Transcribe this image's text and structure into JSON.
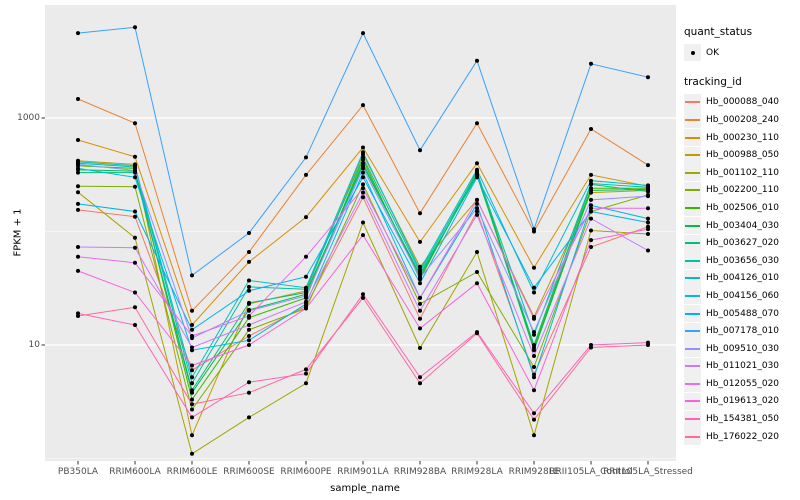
{
  "figure": {
    "y_axis_title": "FPKM + 1",
    "x_axis_title": "sample_name",
    "panel_background": "#ebebeb",
    "gridline_color": "#ffffff",
    "point_color": "#000000",
    "y_tick_labels": [
      {
        "label": "1000",
        "value": 1000
      },
      {
        "label": "10",
        "value": 10
      }
    ]
  },
  "legend": {
    "quant_status_title": "quant_status",
    "quant_ok_label": "OK",
    "tracking_id_title": "tracking_id"
  },
  "chart_data": {
    "type": "line",
    "title": "",
    "xlabel": "sample_name",
    "ylabel": "FPKM + 1",
    "y_scale": "log10",
    "ylim": [
      0.9,
      10000
    ],
    "y_major_gridlines": [
      10,
      1000
    ],
    "y_minor_gridlines": [
      1,
      100,
      10000
    ],
    "grid": true,
    "legend_position": "right",
    "quant_status": "OK",
    "x_categories": [
      "PB350LA",
      "RRIM600LA",
      "RRIM600LE",
      "RRIM600SE",
      "RRIM600PE",
      "RRIM901LA",
      "RRIM928BA",
      "RRIM928LA",
      "RRIM928LE",
      "RRII105LA_Control",
      "RRII105LA_Stressed"
    ],
    "series": [
      {
        "name": "Hb_000088_040",
        "color": "#F8766D",
        "values": [
          155,
          135,
          6.0,
          12,
          22,
          200,
          17,
          150,
          5.5,
          73,
          110
        ]
      },
      {
        "name": "Hb_000208_240",
        "color": "#EA8331",
        "values": [
          1470,
          900,
          20,
          66,
          315,
          1300,
          145,
          900,
          100,
          800,
          385
        ]
      },
      {
        "name": "Hb_000230_110",
        "color": "#D89000",
        "values": [
          640,
          455,
          15,
          54,
          134,
          550,
          81,
          400,
          48,
          315,
          250
        ]
      },
      {
        "name": "Hb_000988_050",
        "color": "#C09B00",
        "values": [
          420,
          390,
          1.6,
          23,
          30,
          480,
          49,
          190,
          17.7,
          220,
          230
        ]
      },
      {
        "name": "Hb_001102_110",
        "color": "#A3A500",
        "values": [
          222,
          88,
          1.1,
          2.3,
          4.6,
          120,
          9.4,
          66,
          1.6,
          102,
          95
        ]
      },
      {
        "name": "Hb_002200_110",
        "color": "#7CAE00",
        "values": [
          250,
          248,
          2.7,
          13.6,
          21,
          260,
          23,
          44,
          6.4,
          150,
          210
        ]
      },
      {
        "name": "Hb_002506_010",
        "color": "#39B600",
        "values": [
          380,
          360,
          3.3,
          17.4,
          26,
          430,
          38,
          340,
          9.5,
          240,
          240
        ]
      },
      {
        "name": "Hb_003404_030",
        "color": "#00BB4E",
        "values": [
          350,
          340,
          3.8,
          20.4,
          28,
          400,
          40,
          320,
          9.0,
          230,
          235
        ]
      },
      {
        "name": "Hb_003627_020",
        "color": "#00BF7D",
        "values": [
          330,
          330,
          4.0,
          23.5,
          29,
          380,
          42,
          310,
          10,
          260,
          225
        ]
      },
      {
        "name": "Hb_003656_030",
        "color": "#00C1A3",
        "values": [
          400,
          370,
          4.6,
          32.5,
          31,
          450,
          44,
          330,
          12.3,
          265,
          245
        ]
      },
      {
        "name": "Hb_004126_010",
        "color": "#00BFC4",
        "values": [
          410,
          380,
          5.2,
          37,
          32,
          500,
          46,
          350,
          29,
          280,
          255
        ]
      },
      {
        "name": "Hb_004156_060",
        "color": "#00BAE0",
        "values": [
          360,
          300,
          9.0,
          11,
          23,
          330,
          26,
          175,
          5.2,
          170,
          130
        ]
      },
      {
        "name": "Hb_005488_070",
        "color": "#00B0F6",
        "values": [
          175,
          150,
          13.6,
          30,
          40,
          300,
          35,
          300,
          32,
          150,
          120
        ]
      },
      {
        "name": "Hb_007178_010",
        "color": "#35A2FF",
        "values": [
          5600,
          6300,
          41,
          97,
          450,
          5600,
          520,
          3200,
          105,
          3000,
          2290
        ]
      },
      {
        "name": "Hb_009510_030",
        "color": "#9590FF",
        "values": [
          390,
          345,
          11.5,
          20,
          27,
          360,
          39,
          160,
          13,
          190,
          205
        ]
      },
      {
        "name": "Hb_011021_030",
        "color": "#C77CFF",
        "values": [
          73,
          72,
          9.5,
          15,
          24,
          220,
          20,
          140,
          8.0,
          130,
          68
        ]
      },
      {
        "name": "Hb_012055_020",
        "color": "#E76BF3",
        "values": [
          60,
          53,
          12,
          18,
          60,
          240,
          26,
          190,
          17,
          160,
          160
        ]
      },
      {
        "name": "Hb_019613_020",
        "color": "#FA62DB",
        "values": [
          45,
          29,
          6.6,
          10,
          21,
          93,
          14,
          35,
          4.0,
          84,
          105
        ]
      },
      {
        "name": "Hb_154381_050",
        "color": "#FF62BC",
        "values": [
          19,
          15,
          2.3,
          4.7,
          5.6,
          28,
          5.2,
          13,
          2.5,
          10,
          10.5
        ]
      },
      {
        "name": "Hb_176022_020",
        "color": "#FF6A98",
        "values": [
          18,
          21.5,
          3.0,
          3.8,
          6.1,
          26,
          4.6,
          12.7,
          2.2,
          9.5,
          10
        ]
      }
    ]
  }
}
